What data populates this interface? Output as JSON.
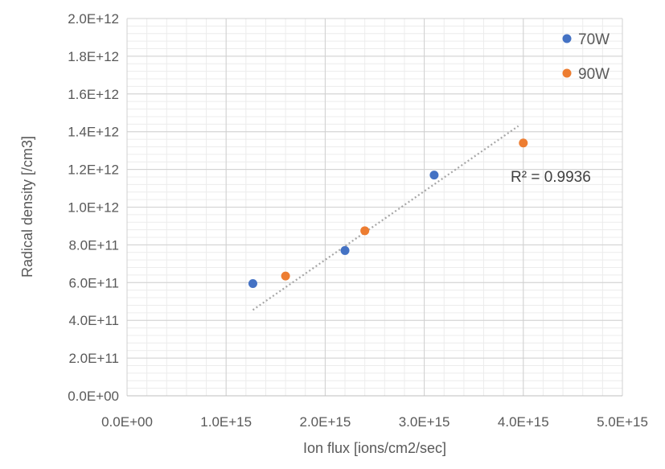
{
  "chart_data": {
    "type": "scatter",
    "xlabel": "Ion flux [ions/cm2/sec]",
    "ylabel": "Radical density [/cm3]",
    "xlim": [
      0,
      5000000000000000.0
    ],
    "ylim": [
      0,
      2000000000000.0
    ],
    "x_major_step": 1000000000000000.0,
    "x_minor_step": 200000000000000.0,
    "y_major_step": 200000000000.0,
    "y_minor_step": 40000000000.0,
    "x_tick_labels": [
      "0.0E+00",
      "1.0E+15",
      "2.0E+15",
      "3.0E+15",
      "4.0E+15",
      "5.0E+15"
    ],
    "y_tick_labels": [
      "0.0E+00",
      "2.0E+11",
      "4.0E+11",
      "6.0E+11",
      "8.0E+11",
      "1.0E+12",
      "1.2E+12",
      "1.4E+12",
      "1.6E+12",
      "1.8E+12",
      "2.0E+12"
    ],
    "grid": true,
    "legend_position": "top-right",
    "series": [
      {
        "name": "70W",
        "color": "#4472C4",
        "x": [
          1270000000000000.0,
          2200000000000000.0,
          3100000000000000.0
        ],
        "y": [
          595000000000.0,
          770000000000.0,
          1170000000000.0
        ]
      },
      {
        "name": "90W",
        "color": "#ED7D31",
        "x": [
          1600000000000000.0,
          2400000000000000.0,
          4000000000000000.0
        ],
        "y": [
          635000000000.0,
          875000000000.0,
          1340000000000.0
        ]
      }
    ],
    "trendline": {
      "style": "dotted",
      "color": "#A6A6A6",
      "x": [
        1270000000000000.0,
        3950000000000000.0
      ],
      "y": [
        455000000000.0,
        1430000000000.0
      ]
    },
    "annotations": [
      {
        "text": "R² = 0.9936"
      }
    ]
  }
}
